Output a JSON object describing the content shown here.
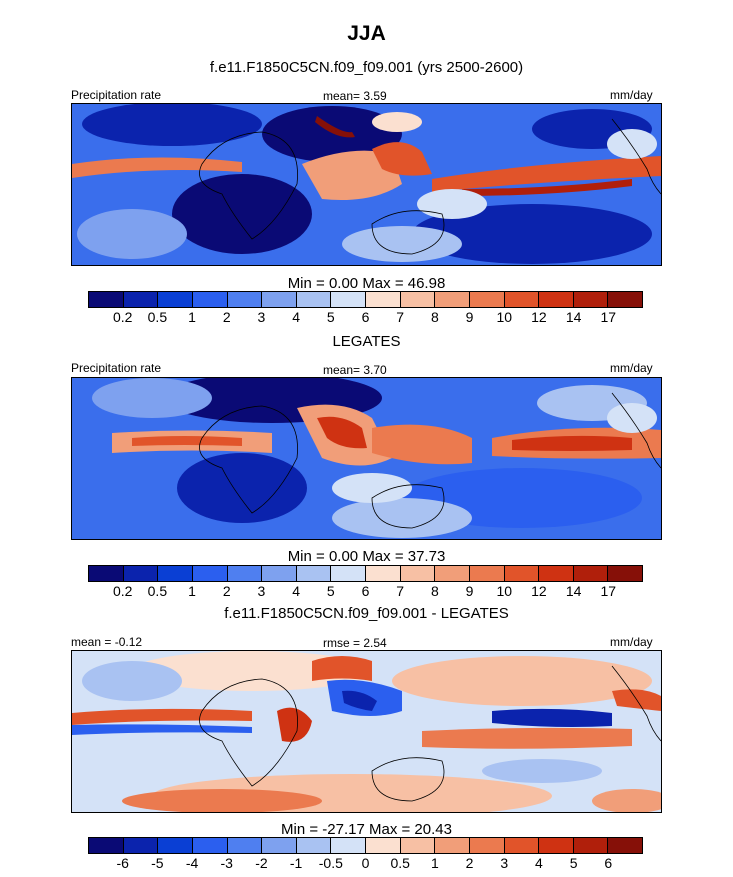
{
  "title": "JJA",
  "subtitle": "f.e11.F1850C5CN.f09_f09.001 (yrs 2500-2600)",
  "panels": [
    {
      "name": "model",
      "left_label": "Precipitation rate",
      "center_label": "mean=   3.59",
      "units": "mm/day",
      "minmax": "Min =   0.00 Max =  46.98"
    },
    {
      "name": "obs",
      "title": "LEGATES",
      "left_label": "Precipitation rate",
      "center_label": "mean=   3.70",
      "units": "mm/day",
      "minmax": "Min =   0.00 Max =  37.73"
    },
    {
      "name": "diff",
      "title": "f.e11.F1850C5CN.f09_f09.001 - LEGATES",
      "left_label": "mean =  -0.12",
      "center_label": "rmse =   2.54",
      "units": "mm/day",
      "minmax": "Min = -27.17 Max =  20.43"
    }
  ],
  "colorbars": {
    "precip": {
      "colors": [
        "#0a0a75",
        "#0b23ad",
        "#0a3fd4",
        "#2b5fef",
        "#4f7ff0",
        "#7ea1ef",
        "#a9c2f2",
        "#d4e2f7",
        "#fbe0d0",
        "#f7c0a4",
        "#f19e79",
        "#eb7a4f",
        "#e1542a",
        "#cf3212",
        "#b01f0b",
        "#861008"
      ],
      "ticks": [
        "0.2",
        "0.5",
        "1",
        "2",
        "3",
        "4",
        "5",
        "6",
        "7",
        "8",
        "9",
        "10",
        "12",
        "14",
        "17"
      ]
    },
    "diff": {
      "colors": [
        "#0a0a75",
        "#0b23ad",
        "#0a3fd4",
        "#2b5fef",
        "#4f7ff0",
        "#7ea1ef",
        "#a9c2f2",
        "#d4e2f7",
        "#fbe0d0",
        "#f7c0a4",
        "#f19e79",
        "#eb7a4f",
        "#e1542a",
        "#cf3212",
        "#b01f0b",
        "#861008"
      ],
      "ticks": [
        "-6",
        "-5",
        "-4",
        "-3",
        "-2",
        "-1",
        "-0.5",
        "0",
        "0.5",
        "1",
        "2",
        "3",
        "4",
        "5",
        "6"
      ]
    }
  },
  "chart_data": [
    {
      "type": "heatmap",
      "title": "JJA",
      "subtitle": "f.e11.F1850C5CN.f09_f09.001 (yrs 2500-2600)",
      "variable": "Precipitation rate",
      "units": "mm/day",
      "mean": 3.59,
      "min": 0.0,
      "max": 46.98,
      "levels": [
        0.2,
        0.5,
        1,
        2,
        3,
        4,
        5,
        6,
        7,
        8,
        9,
        10,
        12,
        14,
        17
      ]
    },
    {
      "type": "heatmap",
      "title": "LEGATES",
      "variable": "Precipitation rate",
      "units": "mm/day",
      "mean": 3.7,
      "min": 0.0,
      "max": 37.73,
      "levels": [
        0.2,
        0.5,
        1,
        2,
        3,
        4,
        5,
        6,
        7,
        8,
        9,
        10,
        12,
        14,
        17
      ]
    },
    {
      "type": "heatmap",
      "title": "f.e11.F1850C5CN.f09_f09.001 - LEGATES",
      "units": "mm/day",
      "mean": -0.12,
      "rmse": 2.54,
      "min": -27.17,
      "max": 20.43,
      "levels": [
        -6,
        -5,
        -4,
        -3,
        -2,
        -1,
        -0.5,
        0,
        0.5,
        1,
        2,
        3,
        4,
        5,
        6
      ]
    }
  ]
}
